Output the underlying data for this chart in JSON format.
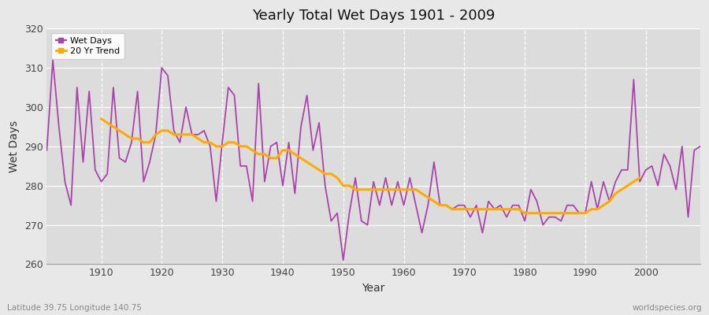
{
  "title": "Yearly Total Wet Days 1901 - 2009",
  "xlabel": "Year",
  "ylabel": "Wet Days",
  "footnote_left": "Latitude 39.75 Longitude 140.75",
  "footnote_right": "worldspecies.org",
  "ylim": [
    260,
    320
  ],
  "xlim": [
    1901,
    2009
  ],
  "yticks": [
    260,
    270,
    280,
    290,
    300,
    310,
    320
  ],
  "xticks": [
    1910,
    1920,
    1930,
    1940,
    1950,
    1960,
    1970,
    1980,
    1990,
    2000
  ],
  "wet_days_color": "#aa44aa",
  "trend_color": "#ffaa00",
  "fig_bg_color": "#e8e8e8",
  "plot_bg_color": "#dcdcdc",
  "legend_labels": [
    "Wet Days",
    "20 Yr Trend"
  ],
  "years": [
    1901,
    1902,
    1903,
    1904,
    1905,
    1906,
    1907,
    1908,
    1909,
    1910,
    1911,
    1912,
    1913,
    1914,
    1915,
    1916,
    1917,
    1918,
    1919,
    1920,
    1921,
    1922,
    1923,
    1924,
    1925,
    1926,
    1927,
    1928,
    1929,
    1930,
    1931,
    1932,
    1933,
    1934,
    1935,
    1936,
    1937,
    1938,
    1939,
    1940,
    1941,
    1942,
    1943,
    1944,
    1945,
    1946,
    1947,
    1948,
    1949,
    1950,
    1951,
    1952,
    1953,
    1954,
    1955,
    1956,
    1957,
    1958,
    1959,
    1960,
    1961,
    1962,
    1963,
    1964,
    1965,
    1966,
    1967,
    1968,
    1969,
    1970,
    1971,
    1972,
    1973,
    1974,
    1975,
    1976,
    1977,
    1978,
    1979,
    1980,
    1981,
    1982,
    1983,
    1984,
    1985,
    1986,
    1987,
    1988,
    1989,
    1990,
    1991,
    1992,
    1993,
    1994,
    1995,
    1996,
    1997,
    1998,
    1999,
    2000,
    2001,
    2002,
    2003,
    2004,
    2005,
    2006,
    2007,
    2008,
    2009
  ],
  "wet_days": [
    289,
    312,
    295,
    281,
    275,
    305,
    286,
    304,
    284,
    281,
    283,
    305,
    287,
    286,
    291,
    304,
    281,
    286,
    293,
    310,
    308,
    294,
    291,
    300,
    293,
    293,
    294,
    290,
    276,
    291,
    305,
    303,
    285,
    285,
    276,
    306,
    281,
    290,
    291,
    280,
    291,
    278,
    295,
    303,
    289,
    296,
    280,
    271,
    273,
    261,
    273,
    282,
    271,
    270,
    281,
    275,
    282,
    275,
    281,
    275,
    282,
    275,
    268,
    275,
    286,
    275,
    275,
    274,
    275,
    275,
    272,
    275,
    268,
    276,
    274,
    275,
    272,
    275,
    275,
    271,
    279,
    276,
    270,
    272,
    272,
    271,
    275,
    275,
    273,
    273,
    281,
    274,
    281,
    276,
    281,
    284,
    284,
    307,
    281,
    284,
    285,
    280,
    288,
    285,
    279,
    290,
    272,
    289,
    290
  ],
  "trend": [
    null,
    null,
    null,
    null,
    null,
    null,
    null,
    null,
    null,
    297,
    296,
    295,
    294,
    293,
    292,
    292,
    291,
    291,
    293,
    294,
    294,
    293,
    293,
    293,
    293,
    292,
    291,
    291,
    290,
    290,
    291,
    291,
    290,
    290,
    289,
    288,
    288,
    287,
    287,
    289,
    289,
    288,
    287,
    286,
    285,
    284,
    283,
    283,
    282,
    280,
    280,
    279,
    279,
    279,
    279,
    279,
    279,
    279,
    279,
    279,
    279,
    279,
    278,
    277,
    276,
    275,
    275,
    274,
    274,
    274,
    274,
    274,
    274,
    274,
    274,
    274,
    274,
    274,
    274,
    273,
    273,
    273,
    273,
    273,
    273,
    273,
    273,
    273,
    273,
    273,
    274,
    274,
    275,
    276,
    278,
    279,
    280,
    281,
    282,
    null,
    null,
    null,
    null,
    null,
    null,
    null,
    null,
    null,
    null
  ]
}
